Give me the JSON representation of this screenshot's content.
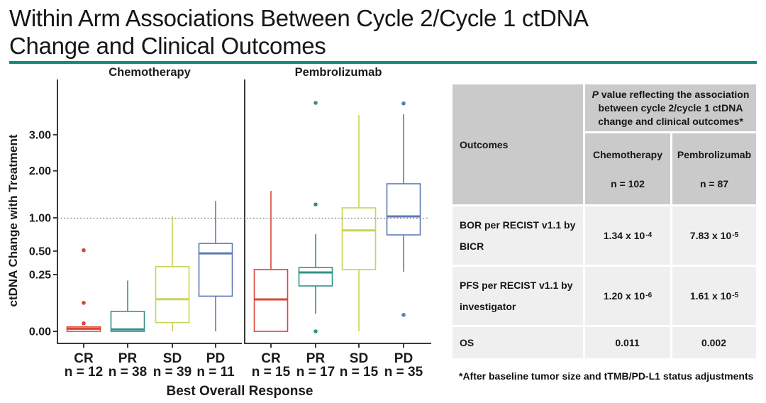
{
  "title": {
    "line1": "Within Arm Associations Between Cycle 2/Cycle 1 ctDNA",
    "line2": "Change and Clinical Outcomes"
  },
  "accent_colors": {
    "title_rule_teal": "#19897f",
    "table_header_gray": "#c9cac9",
    "table_body_gray": "#efefef"
  },
  "chart_data": {
    "type": "boxplot",
    "ylabel": "ctDNA Change with Treatment",
    "xlabel": "Best Overall Response",
    "yscale": "sqrt",
    "ylim": [
      0,
      4.9
    ],
    "grid": false,
    "reference_line": 1.0,
    "yticks": [
      {
        "value": 0.0,
        "label": "0.00"
      },
      {
        "value": 0.25,
        "label": "0.25"
      },
      {
        "value": 0.5,
        "label": "0.50"
      },
      {
        "value": 1.0,
        "label": "1.00"
      },
      {
        "value": 2.0,
        "label": "2.00"
      },
      {
        "value": 3.0,
        "label": "3.00"
      }
    ],
    "panels": [
      {
        "title": "Chemotherapy",
        "boxes": [
          {
            "category": "CR",
            "n": 12,
            "n_label": "n = 12",
            "color": "#db4638",
            "q1": 0.0,
            "median": 0.0005,
            "q3": 0.0015,
            "whisker_low": 0.0,
            "whisker_high": 0.0015,
            "outliers": [
              0.51,
              0.063,
              0.005
            ]
          },
          {
            "category": "PR",
            "n": 38,
            "n_label": "n = 38",
            "color": "#339188",
            "q1": 0.0,
            "median": 0.0003,
            "q3": 0.031,
            "whisker_low": 0.0,
            "whisker_high": 0.2,
            "outliers": []
          },
          {
            "category": "SD",
            "n": 39,
            "n_label": "n = 39",
            "color": "#c8d455",
            "q1": 0.006,
            "median": 0.08,
            "q3": 0.325,
            "whisker_low": 0.0,
            "whisker_high": 1.03,
            "outliers": []
          },
          {
            "category": "PD",
            "n": 11,
            "n_label": "n = 11",
            "color": "#5d79b6",
            "q1": 0.096,
            "median": 0.472,
            "q3": 0.6,
            "whisker_low": 0.0,
            "whisker_high": 1.32,
            "outliers": []
          }
        ]
      },
      {
        "title": "Pembrolizumab",
        "boxes": [
          {
            "category": "CR",
            "n": 15,
            "n_label": "n = 15",
            "color": "#db4638",
            "q1": 0.0,
            "median": 0.079,
            "q3": 0.296,
            "whisker_low": 0.0,
            "whisker_high": 1.53,
            "outliers": []
          },
          {
            "category": "PR",
            "n": 17,
            "n_label": "n = 17",
            "color": "#339188",
            "q1": 0.16,
            "median": 0.269,
            "q3": 0.316,
            "whisker_low": 0.024,
            "whisker_high": 0.733,
            "outliers": [
              4.05,
              1.25,
              0.0
            ]
          },
          {
            "category": "SD",
            "n": 15,
            "n_label": "n = 15",
            "color": "#c8d455",
            "q1": 0.296,
            "median": 0.79,
            "q3": 1.183,
            "whisker_low": 0.0,
            "whisker_high": 3.63,
            "outliers": []
          },
          {
            "category": "PD",
            "n": 35,
            "n_label": "n = 35",
            "color": "#5d79b6",
            "q1": 0.722,
            "median": 1.025,
            "q3": 1.69,
            "whisker_low": 0.276,
            "whisker_high": 3.66,
            "outliers": [
              4.03,
              0.021
            ]
          }
        ]
      }
    ]
  },
  "table": {
    "header": {
      "outcomes": "Outcomes",
      "p_italic": "P",
      "p_line1_rest": " value reflecting the association",
      "p_line2": "between cycle 2/cycle 1 ctDNA",
      "p_line3": "change and clinical outcomes*",
      "col1_title": "Chemotherapy",
      "col1_n": "n = 102",
      "col2_title": "Pembrolizumab",
      "col2_n": "n = 87"
    },
    "rows": [
      {
        "label_line1": "BOR per RECIST v1.1 by",
        "label_line2": "BICR",
        "chemo_base": "1.34 x 10",
        "chemo_exp": "-4",
        "pembro_base": "7.83 x 10",
        "pembro_exp": "-5"
      },
      {
        "label_line1": "PFS per RECIST v1.1 by",
        "label_line2": "investigator",
        "chemo_base": "1.20 x 10",
        "chemo_exp": "-6",
        "pembro_base": "1.61 x 10",
        "pembro_exp": "-5"
      },
      {
        "label_line1": "OS",
        "label_line2": "",
        "chemo_base": "0.011",
        "chemo_exp": "",
        "pembro_base": "0.002",
        "pembro_exp": ""
      }
    ]
  },
  "footnote": "*After baseline tumor size and tTMB/PD-L1 status adjustments"
}
